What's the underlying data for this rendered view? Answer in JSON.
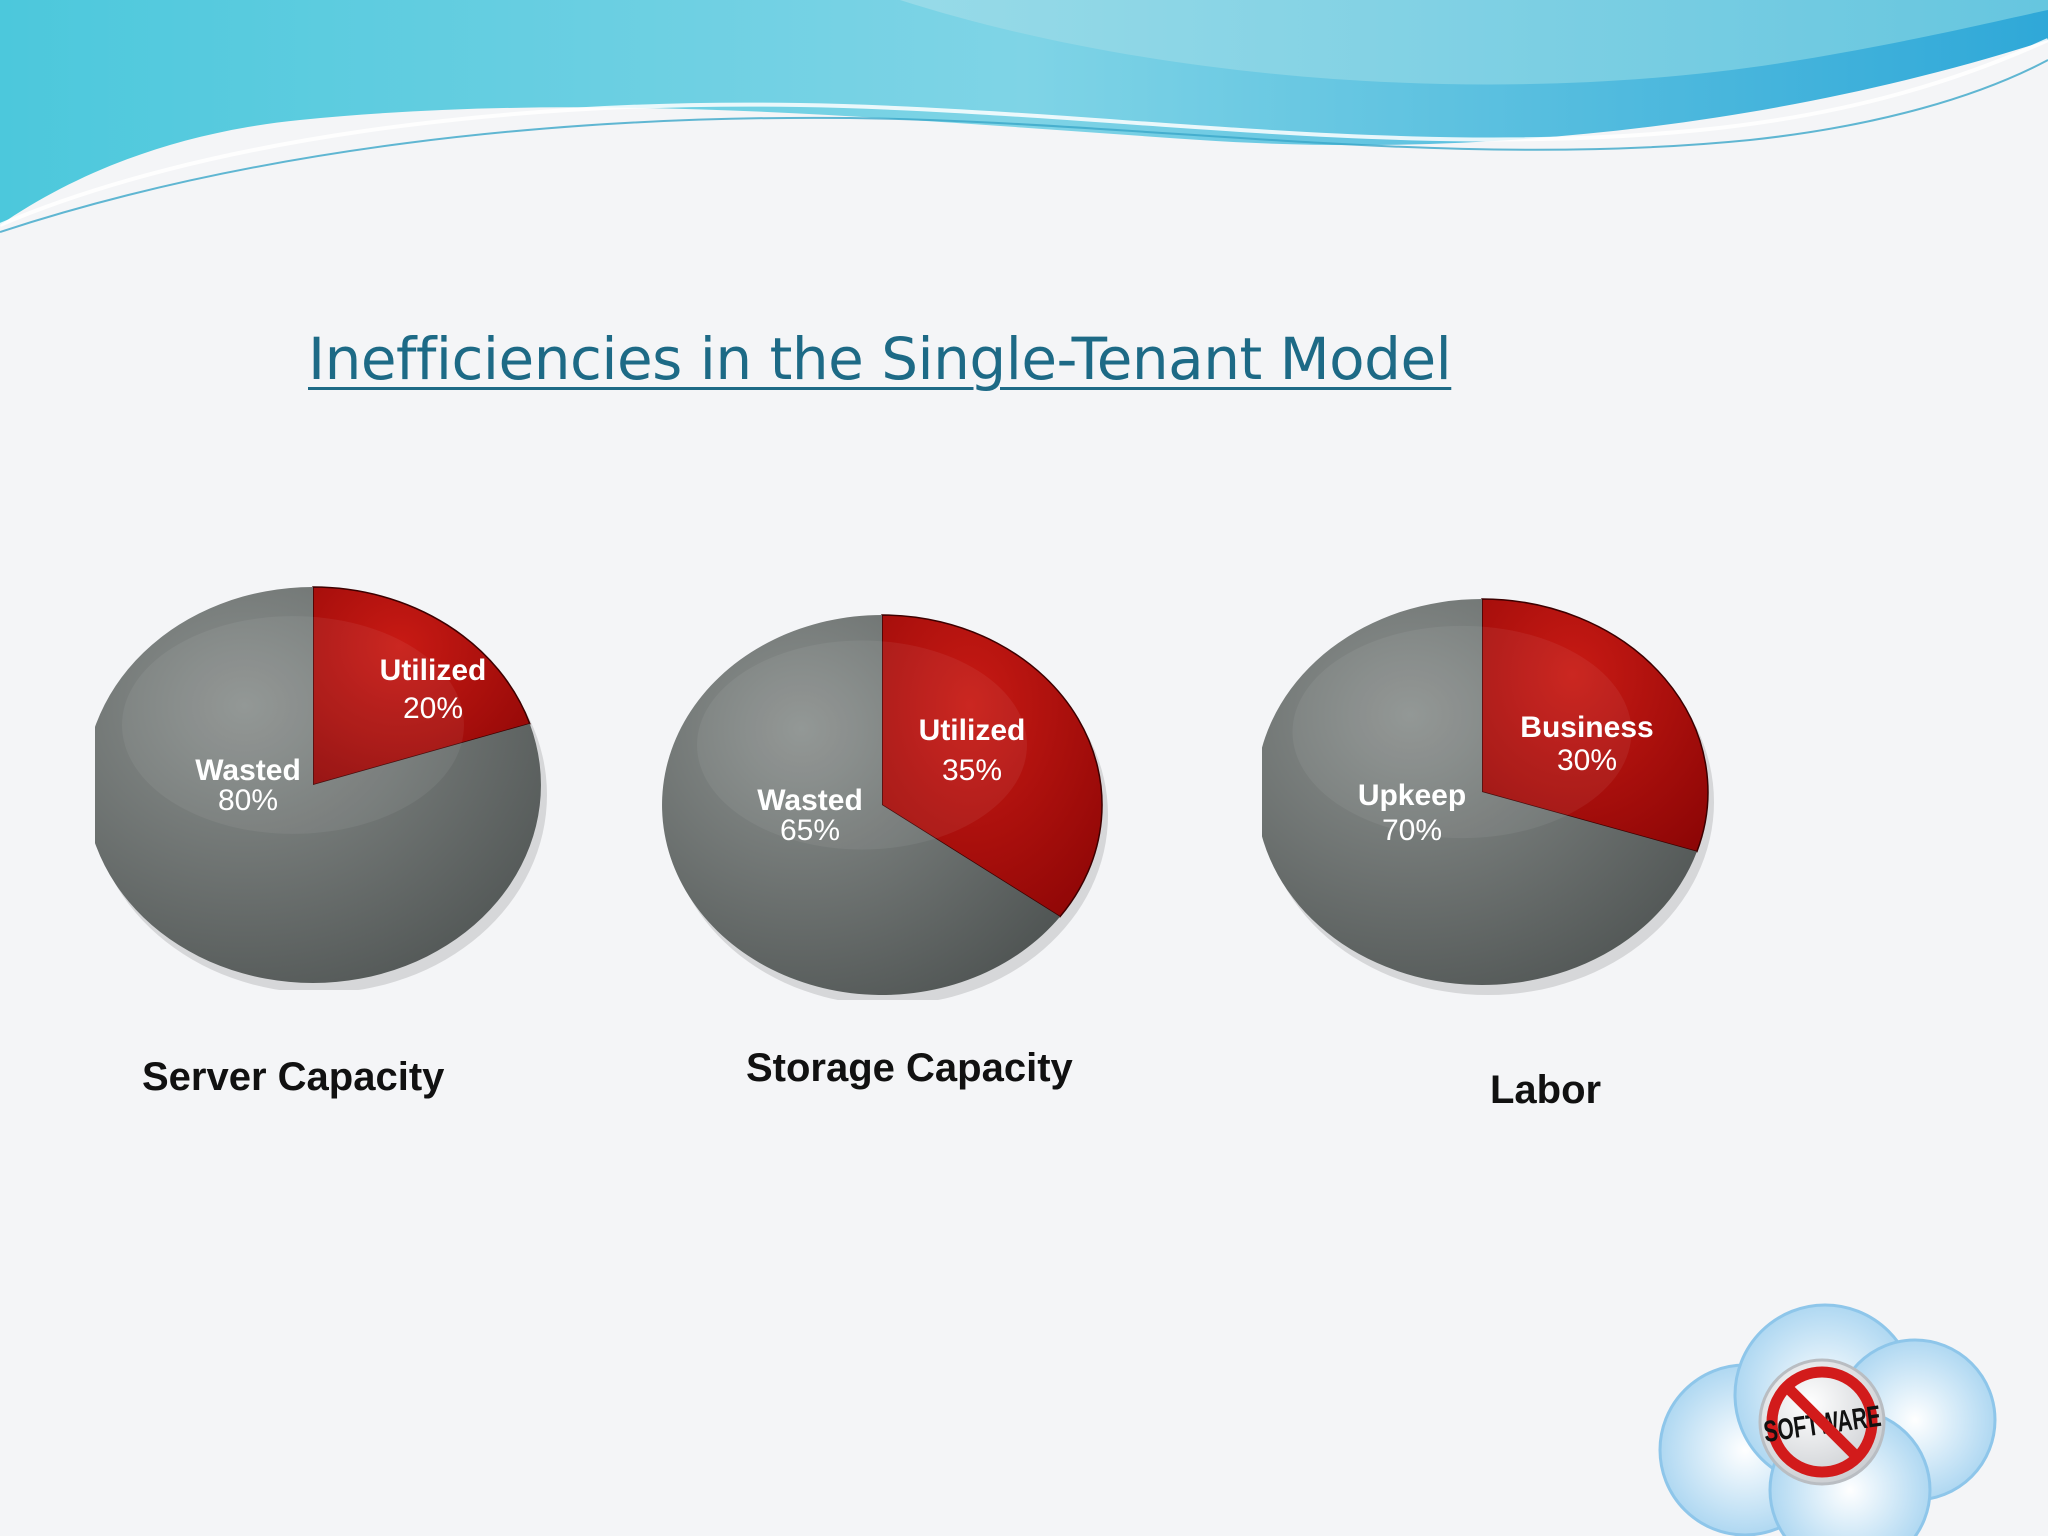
{
  "title": "Inefficiencies in the Single-Tenant Model",
  "colors": {
    "accent_red": "#b50d0d",
    "gray": "#6b706f",
    "title_blue": "#1d6a86"
  },
  "chart_data": [
    {
      "type": "pie",
      "title": "Server Capacity",
      "slices": [
        {
          "label": "Utilized",
          "value": 20,
          "display": "20%"
        },
        {
          "label": "Wasted",
          "value": 80,
          "display": "80%"
        }
      ]
    },
    {
      "type": "pie",
      "title": "Storage Capacity",
      "slices": [
        {
          "label": "Utilized",
          "value": 35,
          "display": "35%"
        },
        {
          "label": "Wasted",
          "value": 65,
          "display": "65%"
        }
      ]
    },
    {
      "type": "pie",
      "title": "Labor",
      "slices": [
        {
          "label": "Business",
          "value": 30,
          "display": "30%"
        },
        {
          "label": "Upkeep",
          "value": 70,
          "display": "70%"
        }
      ]
    }
  ],
  "logo": {
    "text": "SOFTWARE",
    "icon": "no-software-cloud-icon"
  }
}
